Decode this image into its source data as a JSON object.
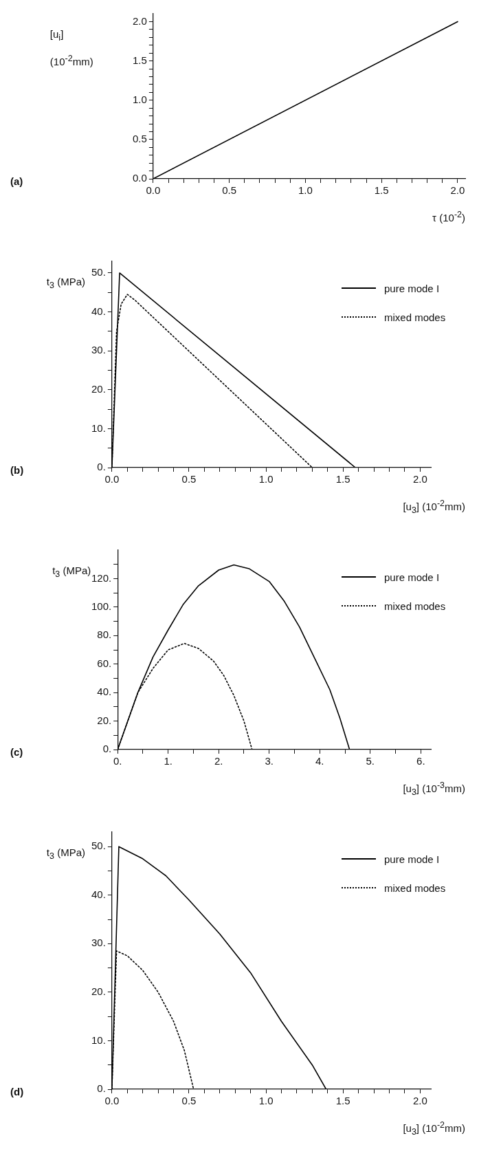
{
  "chart_data": [
    {
      "type": "line",
      "xlabel": "τ (10$^{-2}$)",
      "ylabel": "[u$_{i}$] (10$^{-2}$mm)",
      "annotations": [
        "(a)"
      ],
      "xlim": [
        0,
        2.05
      ],
      "ylim": [
        0,
        2.1
      ],
      "xticks": [
        {
          "value": 0,
          "label": "0.0"
        },
        {
          "value": 0.1,
          "label": null
        },
        {
          "value": 0.2,
          "label": null
        },
        {
          "value": 0.3,
          "label": null
        },
        {
          "value": 0.4,
          "label": null
        },
        {
          "value": 0.5,
          "label": "0.5"
        },
        {
          "value": 0.6,
          "label": null
        },
        {
          "value": 0.7,
          "label": null
        },
        {
          "value": 0.8,
          "label": null
        },
        {
          "value": 0.9,
          "label": null
        },
        {
          "value": 1,
          "label": "1.0"
        },
        {
          "value": 1.1,
          "label": null
        },
        {
          "value": 1.2,
          "label": null
        },
        {
          "value": 1.3,
          "label": null
        },
        {
          "value": 1.4,
          "label": null
        },
        {
          "value": 1.5,
          "label": "1.5"
        },
        {
          "value": 1.6,
          "label": null
        },
        {
          "value": 1.7,
          "label": null
        },
        {
          "value": 1.8,
          "label": null
        },
        {
          "value": 1.9,
          "label": null
        },
        {
          "value": 2,
          "label": "2.0"
        }
      ],
      "yticks": [
        {
          "value": 0,
          "label": "0.0"
        },
        {
          "value": 0.1,
          "label": null
        },
        {
          "value": 0.2,
          "label": null
        },
        {
          "value": 0.3,
          "label": null
        },
        {
          "value": 0.4,
          "label": null
        },
        {
          "value": 0.5,
          "label": "0.5"
        },
        {
          "value": 0.6,
          "label": null
        },
        {
          "value": 0.7,
          "label": null
        },
        {
          "value": 0.8,
          "label": null
        },
        {
          "value": 0.9,
          "label": null
        },
        {
          "value": 1,
          "label": "1.0"
        },
        {
          "value": 1.1,
          "label": null
        },
        {
          "value": 1.2,
          "label": null
        },
        {
          "value": 1.3,
          "label": null
        },
        {
          "value": 1.4,
          "label": null
        },
        {
          "value": 1.5,
          "label": "1.5"
        },
        {
          "value": 1.6,
          "label": null
        },
        {
          "value": 1.7,
          "label": null
        },
        {
          "value": 1.8,
          "label": null
        },
        {
          "value": 1.9,
          "label": null
        },
        {
          "value": 2,
          "label": "2.0"
        }
      ],
      "grid": false,
      "legend": false,
      "marker": "none",
      "series": [
        {
          "color": "#000000",
          "line_style": "solid",
          "x": [
            0,
            2
          ],
          "values": [
            0,
            2
          ]
        }
      ]
    },
    {
      "type": "line",
      "xlabel": "[u$_{3}$]  (10$^{-2}$mm)",
      "ylabel": "t$_{3}$ (MPa)",
      "annotations": [
        "(b)"
      ],
      "xlim": [
        0,
        2.07
      ],
      "ylim": [
        0,
        53
      ],
      "xticks": [
        {
          "value": 0,
          "label": "0.0"
        },
        {
          "value": 0.1,
          "label": null
        },
        {
          "value": 0.2,
          "label": null
        },
        {
          "value": 0.3,
          "label": null
        },
        {
          "value": 0.4,
          "label": null
        },
        {
          "value": 0.5,
          "label": "0.5"
        },
        {
          "value": 0.6,
          "label": null
        },
        {
          "value": 0.7,
          "label": null
        },
        {
          "value": 0.8,
          "label": null
        },
        {
          "value": 0.9,
          "label": null
        },
        {
          "value": 1,
          "label": "1.0"
        },
        {
          "value": 1.1,
          "label": null
        },
        {
          "value": 1.2,
          "label": null
        },
        {
          "value": 1.3,
          "label": null
        },
        {
          "value": 1.4,
          "label": null
        },
        {
          "value": 1.5,
          "label": "1.5"
        },
        {
          "value": 1.6,
          "label": null
        },
        {
          "value": 1.7,
          "label": null
        },
        {
          "value": 1.8,
          "label": null
        },
        {
          "value": 1.9,
          "label": null
        },
        {
          "value": 2,
          "label": "2.0"
        }
      ],
      "yticks": [
        {
          "value": 0,
          "label": "0."
        },
        {
          "value": 5,
          "label": null
        },
        {
          "value": 10,
          "label": "10."
        },
        {
          "value": 15,
          "label": null
        },
        {
          "value": 20,
          "label": "20."
        },
        {
          "value": 25,
          "label": null
        },
        {
          "value": 30,
          "label": "30."
        },
        {
          "value": 35,
          "label": null
        },
        {
          "value": 40,
          "label": "40."
        },
        {
          "value": 45,
          "label": null
        },
        {
          "value": 50,
          "label": "50."
        }
      ],
      "grid": false,
      "legend": "top right",
      "marker": "none",
      "series": [
        {
          "name": "pure mode I",
          "color": "#000000",
          "line_style": "solid",
          "x": [
            0,
            0.01,
            0.05,
            1.58
          ],
          "values": [
            0,
            10,
            50,
            0
          ]
        },
        {
          "name": "mixed modes",
          "color": "#000000",
          "line_style": "dotted",
          "x": [
            0,
            0.03,
            0.06,
            0.1,
            0.15,
            1.3
          ],
          "values": [
            0,
            35,
            42,
            44.5,
            43,
            0
          ]
        }
      ]
    },
    {
      "type": "line",
      "xlabel": "[u$_{3}$]  (10$^{-3}$mm)",
      "ylabel": "t$_{3}$ (MPa)",
      "annotations": [
        "(c)"
      ],
      "xlim": [
        0,
        6.2
      ],
      "ylim": [
        0,
        140
      ],
      "xticks": [
        {
          "value": 0,
          "label": "0."
        },
        {
          "value": 0.5,
          "label": null
        },
        {
          "value": 1,
          "label": "1."
        },
        {
          "value": 1.5,
          "label": null
        },
        {
          "value": 2,
          "label": "2."
        },
        {
          "value": 2.5,
          "label": null
        },
        {
          "value": 3,
          "label": "3."
        },
        {
          "value": 3.5,
          "label": null
        },
        {
          "value": 4,
          "label": "4."
        },
        {
          "value": 4.5,
          "label": null
        },
        {
          "value": 5,
          "label": "5."
        },
        {
          "value": 5.5,
          "label": null
        },
        {
          "value": 6,
          "label": "6."
        }
      ],
      "yticks": [
        {
          "value": 0,
          "label": "0."
        },
        {
          "value": 10,
          "label": null
        },
        {
          "value": 20,
          "label": "20."
        },
        {
          "value": 30,
          "label": null
        },
        {
          "value": 40,
          "label": "40."
        },
        {
          "value": 50,
          "label": null
        },
        {
          "value": 60,
          "label": "60."
        },
        {
          "value": 70,
          "label": null
        },
        {
          "value": 80,
          "label": "80."
        },
        {
          "value": 90,
          "label": null
        },
        {
          "value": 100,
          "label": "100."
        },
        {
          "value": 110,
          "label": null
        },
        {
          "value": 120,
          "label": "120."
        },
        {
          "value": 130,
          "label": null
        }
      ],
      "grid": false,
      "legend": "top right",
      "marker": "none",
      "series": [
        {
          "name": "pure mode I",
          "color": "#000000",
          "line_style": "solid",
          "x": [
            0,
            0.4,
            0.7,
            1,
            1.3,
            1.6,
            2,
            2.3,
            2.6,
            3,
            3.3,
            3.6,
            3.9,
            4.2,
            4.4,
            4.59,
            6
          ],
          "values": [
            0,
            40,
            65,
            84,
            102,
            115,
            126,
            129.6,
            127,
            118,
            104,
            86,
            64,
            42,
            22,
            0,
            0
          ]
        },
        {
          "name": "mixed modes",
          "color": "#000000",
          "line_style": "dotted",
          "x": [
            0,
            0.4,
            0.7,
            1,
            1.32,
            1.6,
            1.9,
            2.1,
            2.3,
            2.5,
            2.66
          ],
          "values": [
            0,
            40,
            57,
            70,
            74.5,
            71,
            62,
            52,
            38,
            20,
            0
          ]
        }
      ]
    },
    {
      "type": "line",
      "xlabel": "[u$_{3}$]  (10$^{-2}$mm)",
      "ylabel": "t$_{3}$ (MPa)",
      "annotations": [
        "(d)"
      ],
      "xlim": [
        0,
        2.07
      ],
      "ylim": [
        0,
        53
      ],
      "xticks": [
        {
          "value": 0,
          "label": "0.0"
        },
        {
          "value": 0.1,
          "label": null
        },
        {
          "value": 0.2,
          "label": null
        },
        {
          "value": 0.3,
          "label": null
        },
        {
          "value": 0.4,
          "label": null
        },
        {
          "value": 0.5,
          "label": "0.5"
        },
        {
          "value": 0.6,
          "label": null
        },
        {
          "value": 0.7,
          "label": null
        },
        {
          "value": 0.8,
          "label": null
        },
        {
          "value": 0.9,
          "label": null
        },
        {
          "value": 1,
          "label": "1.0"
        },
        {
          "value": 1.1,
          "label": null
        },
        {
          "value": 1.2,
          "label": null
        },
        {
          "value": 1.3,
          "label": null
        },
        {
          "value": 1.4,
          "label": null
        },
        {
          "value": 1.5,
          "label": "1.5"
        },
        {
          "value": 1.6,
          "label": null
        },
        {
          "value": 1.7,
          "label": null
        },
        {
          "value": 1.8,
          "label": null
        },
        {
          "value": 1.9,
          "label": null
        },
        {
          "value": 2,
          "label": "2.0"
        }
      ],
      "yticks": [
        {
          "value": 0,
          "label": "0."
        },
        {
          "value": 5,
          "label": null
        },
        {
          "value": 10,
          "label": "10."
        },
        {
          "value": 15,
          "label": null
        },
        {
          "value": 20,
          "label": "20."
        },
        {
          "value": 25,
          "label": null
        },
        {
          "value": 30,
          "label": "30."
        },
        {
          "value": 35,
          "label": null
        },
        {
          "value": 40,
          "label": "40."
        },
        {
          "value": 45,
          "label": null
        },
        {
          "value": 50,
          "label": "50."
        }
      ],
      "grid": false,
      "legend": "top right",
      "marker": "none",
      "series": [
        {
          "name": "pure mode I",
          "color": "#000000",
          "line_style": "solid",
          "x": [
            0,
            0.045,
            0.2,
            0.35,
            0.5,
            0.7,
            0.9,
            1.1,
            1.3,
            1.39,
            2
          ],
          "values": [
            0,
            50,
            47.5,
            44,
            39,
            32,
            24,
            14,
            5,
            0,
            0
          ]
        },
        {
          "name": "mixed modes",
          "color": "#000000",
          "line_style": "dotted",
          "x": [
            0,
            0.03,
            0.1,
            0.2,
            0.3,
            0.4,
            0.47,
            0.53
          ],
          "values": [
            0,
            28.5,
            27.5,
            24.5,
            20,
            14,
            8,
            0
          ]
        }
      ]
    }
  ]
}
